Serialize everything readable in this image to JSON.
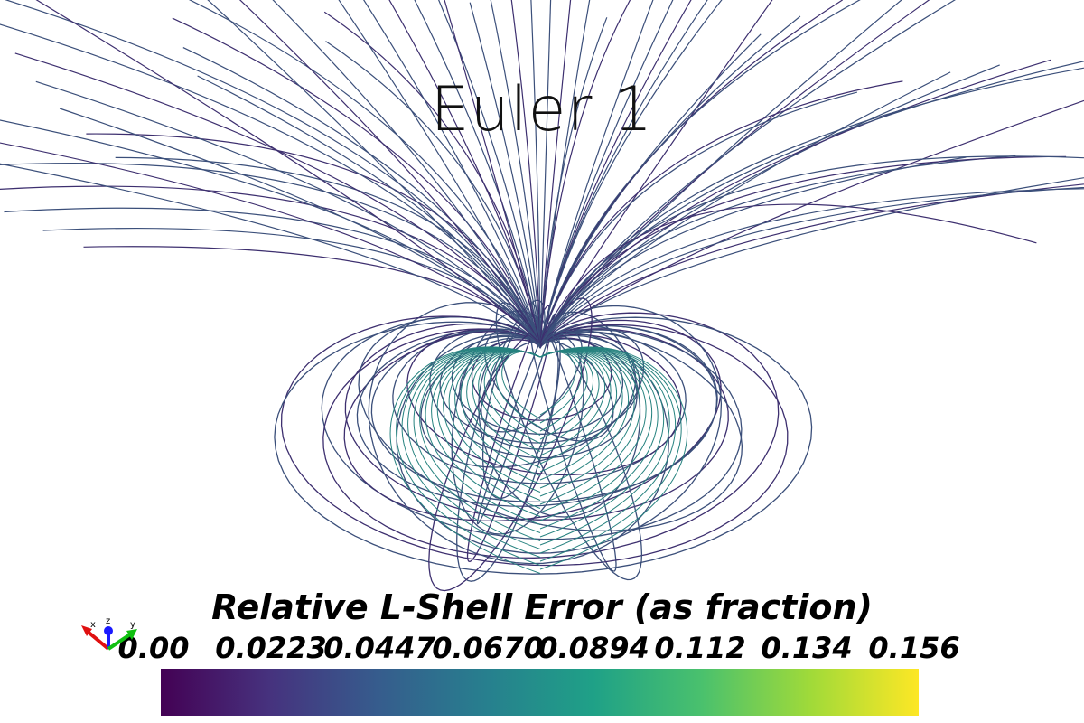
{
  "title": "Euler 1",
  "colorbar": {
    "title": "Relative L-Shell Error (as fraction)",
    "ticks": [
      "0.00",
      "0.0223",
      "0.0447",
      "0.0670",
      "0.0894",
      "0.112",
      "0.134",
      "0.156"
    ],
    "colors": [
      "#440154",
      "#46327e",
      "#365c8d",
      "#277f8e",
      "#1fa187",
      "#4ac16d",
      "#a0da39",
      "#fde725"
    ]
  },
  "axes_widget": {
    "x": "x",
    "z": "z",
    "y": "y"
  },
  "colors": {
    "line": "#3b4f7a",
    "line_inner": "#3d2f6f",
    "line_south": "#26827f"
  }
}
